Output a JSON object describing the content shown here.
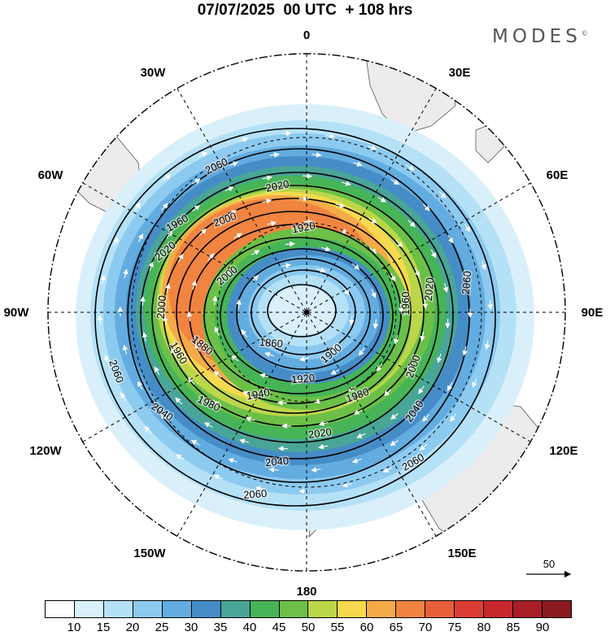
{
  "title": "07/07/2025  00 UTC  + 108 hrs",
  "brand": {
    "text": "MODES",
    "mark": "©"
  },
  "map": {
    "projection": "south-polar-stereographic",
    "longitude_labels": [
      "0",
      "30E",
      "60E",
      "90E",
      "120E",
      "150E",
      "180",
      "150W",
      "120W",
      "90W",
      "60W",
      "30W"
    ],
    "land_color": "#ececec",
    "contour_color": "#000000",
    "contour_labels": [
      {
        "text": "2060"
      },
      {
        "text": "2020"
      },
      {
        "text": "1920"
      },
      {
        "text": "2000"
      },
      {
        "text": "2020"
      },
      {
        "text": "1960"
      },
      {
        "text": "2000"
      },
      {
        "text": "1960"
      },
      {
        "text": "1880"
      },
      {
        "text": "1860"
      },
      {
        "text": "1900"
      },
      {
        "text": "1920"
      },
      {
        "text": "1940"
      },
      {
        "text": "1980"
      },
      {
        "text": "1980"
      },
      {
        "text": "2020"
      },
      {
        "text": "2040"
      },
      {
        "text": "2040"
      },
      {
        "text": "2040"
      },
      {
        "text": "2060"
      },
      {
        "text": "2060"
      },
      {
        "text": "2060"
      },
      {
        "text": "2060"
      },
      {
        "text": "2000"
      },
      {
        "text": "2020"
      },
      {
        "text": "1960"
      },
      {
        "text": "2000"
      }
    ]
  },
  "colorbar": {
    "colors": [
      "#ffffff",
      "#d9f0fb",
      "#b5e1f7",
      "#8ccaf0",
      "#63acdf",
      "#468dc7",
      "#48a597",
      "#46b457",
      "#6cbf47",
      "#bcd64a",
      "#f6d94e",
      "#f5aa4a",
      "#f08440",
      "#e8603a",
      "#dc3d34",
      "#c6282e",
      "#a81f26",
      "#8a1a20"
    ],
    "ticks": [
      "10",
      "15",
      "20",
      "25",
      "30",
      "35",
      "40",
      "45",
      "50",
      "55",
      "60",
      "65",
      "70",
      "75",
      "80",
      "85",
      "90"
    ]
  },
  "reference_vector": {
    "label": "50"
  }
}
